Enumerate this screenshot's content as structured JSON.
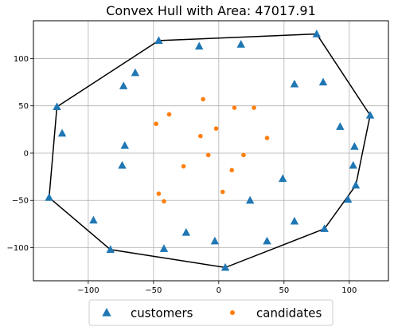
{
  "chart_data": {
    "type": "scatter",
    "title": "Convex Hull with Area: 47017.91",
    "xlabel": "",
    "ylabel": "",
    "xlim": [
      -142,
      130
    ],
    "ylim": [
      -135,
      140
    ],
    "xticks": [
      -100,
      -50,
      0,
      50,
      100
    ],
    "yticks": [
      -100,
      -50,
      0,
      50,
      100
    ],
    "grid": true,
    "legend_position": "bottom-center",
    "series": [
      {
        "name": "customers",
        "marker": "triangle",
        "color": "#1f77b4",
        "points": [
          [
            -46,
            119
          ],
          [
            -15,
            113
          ],
          [
            17,
            115
          ],
          [
            75,
            126
          ],
          [
            -124,
            49
          ],
          [
            -120,
            21
          ],
          [
            -64,
            85
          ],
          [
            -73,
            71
          ],
          [
            58,
            73
          ],
          [
            80,
            75
          ],
          [
            116,
            40
          ],
          [
            93,
            28
          ],
          [
            104,
            7
          ],
          [
            -72,
            8
          ],
          [
            -74,
            -13
          ],
          [
            103,
            -13
          ],
          [
            49,
            -27
          ],
          [
            24,
            -50
          ],
          [
            -130,
            -47
          ],
          [
            105,
            -34
          ],
          [
            99,
            -49
          ],
          [
            -96,
            -71
          ],
          [
            58,
            -72
          ],
          [
            37,
            -93
          ],
          [
            -3,
            -93
          ],
          [
            -25,
            -84
          ],
          [
            -42,
            -101
          ],
          [
            -83,
            -102
          ],
          [
            81,
            -80
          ],
          [
            5,
            -121
          ]
        ]
      },
      {
        "name": "candidates",
        "marker": "circle",
        "color": "#ff7f0e",
        "points": [
          [
            -12,
            57
          ],
          [
            12,
            48
          ],
          [
            27,
            48
          ],
          [
            -38,
            41
          ],
          [
            -48,
            31
          ],
          [
            -2,
            26
          ],
          [
            -14,
            18
          ],
          [
            37,
            16
          ],
          [
            -8,
            -2
          ],
          [
            19,
            -2
          ],
          [
            -27,
            -14
          ],
          [
            10,
            -18
          ],
          [
            -46,
            -43
          ],
          [
            3,
            -41
          ],
          [
            -42,
            -51
          ]
        ]
      }
    ],
    "hull": [
      [
        75,
        126
      ],
      [
        116,
        40
      ],
      [
        105,
        -34
      ],
      [
        81,
        -80
      ],
      [
        5,
        -121
      ],
      [
        -83,
        -102
      ],
      [
        -130,
        -47
      ],
      [
        -124,
        49
      ],
      [
        -46,
        119
      ]
    ]
  }
}
